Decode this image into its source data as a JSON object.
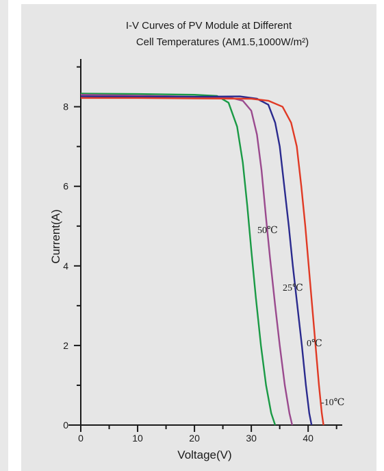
{
  "chart_data": {
    "type": "line",
    "title_lines": [
      "I-V Curves of PV Module at Different",
      "Cell Temperatures (AM1.5,1000W/m²)"
    ],
    "xlabel": "Voltage(V)",
    "ylabel": "Current(A)",
    "xlim": [
      0,
      46
    ],
    "ylim": [
      0,
      9.2
    ],
    "x_ticks": [
      0,
      10,
      20,
      30,
      40
    ],
    "y_ticks": [
      0,
      2,
      4,
      6,
      8
    ],
    "grid": false,
    "legend": "inline labels",
    "series": [
      {
        "name": "50℃",
        "color": "#1a9a45",
        "points": [
          [
            0,
            8.33
          ],
          [
            10,
            8.32
          ],
          [
            20,
            8.3
          ],
          [
            24,
            8.27
          ],
          [
            26,
            8.1
          ],
          [
            27.5,
            7.5
          ],
          [
            28.5,
            6.6
          ],
          [
            29.3,
            5.5
          ],
          [
            30,
            4.4
          ],
          [
            30.8,
            3.2
          ],
          [
            31.7,
            2.0
          ],
          [
            32.6,
            1.0
          ],
          [
            33.5,
            0.3
          ],
          [
            34.2,
            0
          ]
        ]
      },
      {
        "name": "25℃",
        "color": "#9a4a8e",
        "points": [
          [
            0,
            8.3
          ],
          [
            10,
            8.28
          ],
          [
            20,
            8.25
          ],
          [
            26,
            8.24
          ],
          [
            28.5,
            8.15
          ],
          [
            30,
            7.9
          ],
          [
            31,
            7.3
          ],
          [
            31.8,
            6.4
          ],
          [
            32.6,
            5.2
          ],
          [
            33.3,
            4.2
          ],
          [
            34.2,
            3.0
          ],
          [
            35.0,
            2.0
          ],
          [
            35.9,
            1.0
          ],
          [
            36.7,
            0.3
          ],
          [
            37.2,
            0
          ]
        ]
      },
      {
        "name": "0℃",
        "color": "#2a2a8e",
        "points": [
          [
            0,
            8.26
          ],
          [
            10,
            8.25
          ],
          [
            20,
            8.25
          ],
          [
            28,
            8.26
          ],
          [
            31,
            8.2
          ],
          [
            33,
            8.05
          ],
          [
            34.2,
            7.6
          ],
          [
            35.0,
            7.0
          ],
          [
            35.8,
            6.0
          ],
          [
            36.6,
            5.0
          ],
          [
            37.3,
            4.0
          ],
          [
            38.1,
            3.0
          ],
          [
            38.9,
            2.0
          ],
          [
            39.6,
            1.0
          ],
          [
            40.2,
            0.3
          ],
          [
            40.6,
            0
          ]
        ]
      },
      {
        "name": "-10℃",
        "color": "#e03a25",
        "points": [
          [
            0,
            8.22
          ],
          [
            10,
            8.22
          ],
          [
            20,
            8.21
          ],
          [
            30,
            8.2
          ],
          [
            33,
            8.15
          ],
          [
            35.5,
            8.0
          ],
          [
            37,
            7.6
          ],
          [
            38,
            7.0
          ],
          [
            38.8,
            6.0
          ],
          [
            39.5,
            5.0
          ],
          [
            40.1,
            4.0
          ],
          [
            40.7,
            3.0
          ],
          [
            41.3,
            2.0
          ],
          [
            41.9,
            1.0
          ],
          [
            42.4,
            0.3
          ],
          [
            42.7,
            0
          ]
        ]
      }
    ]
  }
}
